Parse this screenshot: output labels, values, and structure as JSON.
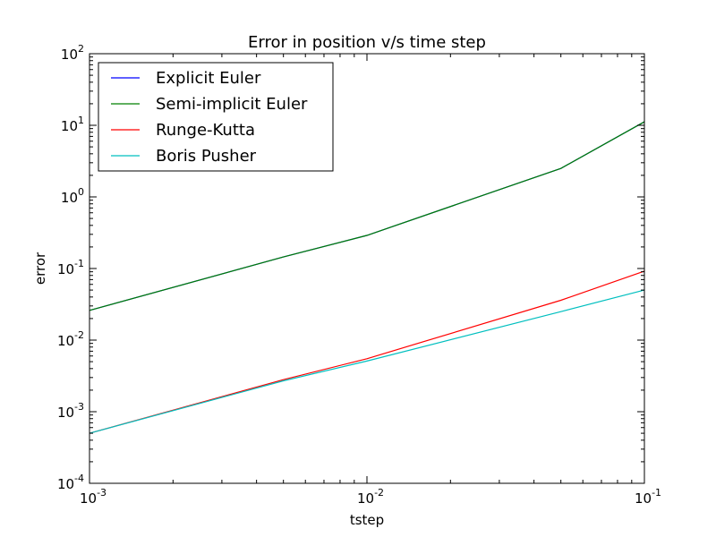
{
  "chart_data": {
    "type": "line",
    "title": "Error in position v/s time step",
    "xlabel": "tstep",
    "ylabel": "error",
    "x_scale": "log",
    "y_scale": "log",
    "xlim": [
      0.001,
      0.1
    ],
    "ylim": [
      0.0001,
      100
    ],
    "x_ticks": [
      {
        "value": 0.001,
        "base": "10",
        "exp": "-3"
      },
      {
        "value": 0.01,
        "base": "10",
        "exp": "-2"
      },
      {
        "value": 0.1,
        "base": "10",
        "exp": "-1"
      }
    ],
    "y_ticks": [
      {
        "value": 0.0001,
        "base": "10",
        "exp": "-4"
      },
      {
        "value": 0.001,
        "base": "10",
        "exp": "-3"
      },
      {
        "value": 0.01,
        "base": "10",
        "exp": "-2"
      },
      {
        "value": 0.1,
        "base": "10",
        "exp": "-1"
      },
      {
        "value": 1,
        "base": "10",
        "exp": "0"
      },
      {
        "value": 10,
        "base": "10",
        "exp": "1"
      },
      {
        "value": 100,
        "base": "10",
        "exp": "2"
      }
    ],
    "grid": false,
    "legend_position": "top-left",
    "x": [
      0.001,
      0.005,
      0.01,
      0.05,
      0.1
    ],
    "series": [
      {
        "name": "Explicit Euler",
        "color": "#0000ff",
        "values": [
          0.026,
          0.145,
          0.29,
          2.5,
          11.2
        ]
      },
      {
        "name": "Semi-implicit Euler",
        "color": "#008000",
        "values": [
          0.026,
          0.145,
          0.29,
          2.5,
          11.2
        ]
      },
      {
        "name": "Runge-Kutta",
        "color": "#ff0000",
        "values": [
          0.0005,
          0.0028,
          0.0055,
          0.036,
          0.092
        ]
      },
      {
        "name": "Boris Pusher",
        "color": "#00bfbf",
        "values": [
          0.0005,
          0.0027,
          0.0051,
          0.025,
          0.05
        ]
      }
    ]
  }
}
